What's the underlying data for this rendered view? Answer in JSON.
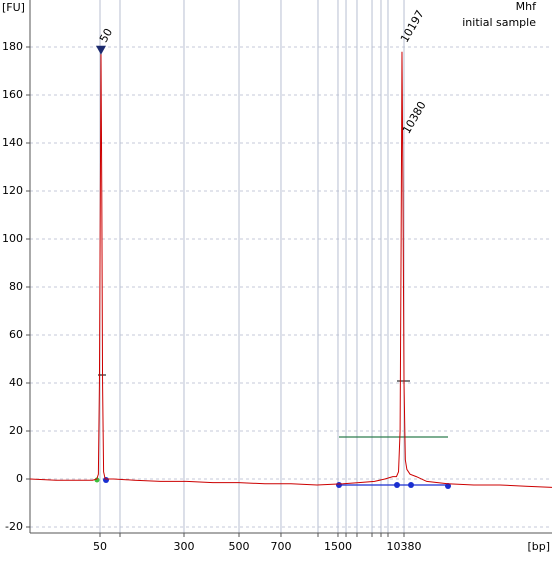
{
  "chart_data": {
    "type": "line",
    "y_label": "[FU]",
    "x_label": "[bp]",
    "sample_name": "Mhf",
    "sample_description": "initial sample",
    "x": [
      0,
      5,
      10,
      12,
      12.8,
      13.1,
      13.3,
      13.5,
      13.6,
      13.75,
      13.9,
      14.1,
      14.4,
      16,
      20,
      25,
      30,
      35,
      40,
      45,
      50,
      55,
      60,
      63,
      66,
      68,
      69.5,
      70.2,
      70.6,
      70.9,
      71.1,
      71.26,
      71.45,
      71.65,
      71.9,
      72.2,
      72.8,
      74,
      76,
      80,
      85,
      90,
      95,
      100
    ],
    "series": [
      {
        "name": "initial sample",
        "color": "#cc0000",
        "values": [
          0,
          -0.5,
          -0.5,
          -0.5,
          0,
          2,
          40,
          130,
          178,
          120,
          40,
          3,
          0,
          0,
          -0.5,
          -1,
          -1,
          -1.5,
          -1.5,
          -2,
          -2,
          -2.5,
          -2,
          -1.5,
          -1,
          0,
          1,
          1,
          3,
          20,
          100,
          178,
          120,
          40,
          8,
          4,
          2,
          1,
          -1,
          -2,
          -2.5,
          -2.5,
          -3,
          -3.5
        ]
      }
    ],
    "xlim": [
      0,
      100
    ],
    "xticks": [
      {
        "value": 13.41,
        "label": "50"
      },
      {
        "value": 17.24,
        "label": null
      },
      {
        "value": 29.5,
        "label": "300"
      },
      {
        "value": 40.04,
        "label": "500"
      },
      {
        "value": 48.08,
        "label": "700"
      },
      {
        "value": 55.17,
        "label": null
      },
      {
        "value": 59.0,
        "label": "1500"
      },
      {
        "value": 60.54,
        "label": null
      },
      {
        "value": 62.64,
        "label": null
      },
      {
        "value": 65.52,
        "label": null
      },
      {
        "value": 67.24,
        "label": null
      },
      {
        "value": 68.58,
        "label": null
      },
      {
        "value": 71.65,
        "label": "10380"
      }
    ],
    "ylim": [
      -22.5,
      197.5
    ],
    "yticks": [
      -20,
      0,
      20,
      40,
      60,
      80,
      100,
      120,
      140,
      160,
      180
    ],
    "grid": true,
    "peak_labels": [
      {
        "text": "50",
        "x": 13.6,
        "y": 178,
        "color": "#2a9d2a"
      },
      {
        "text": "10197",
        "x": 71.26,
        "y": 178,
        "color": "#000000"
      },
      {
        "text": "10380",
        "x": 71.65,
        "y": 140,
        "color": "#8a2be2"
      }
    ]
  }
}
